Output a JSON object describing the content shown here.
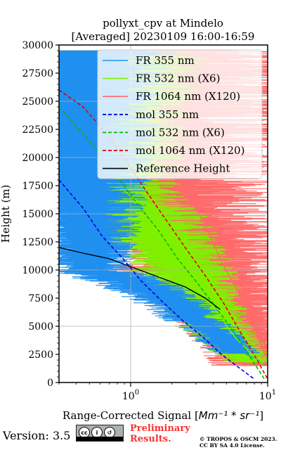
{
  "chart_data": {
    "type": "line",
    "title": [
      "pollyxt_cpv at Mindelo",
      "[Averaged] 20230109 16:00-16:59"
    ],
    "xlabel": "Range-Corrected Signal [Mm⁻¹ * sr⁻¹]",
    "xlabel_main": "Range-Corrected Signal [",
    "xlabel_math": "Mm⁻¹ * sr⁻¹",
    "xlabel_end": "]",
    "ylabel": "Height (m)",
    "xscale": "log",
    "xlim": [
      0.3,
      10
    ],
    "ylim": [
      0,
      30000
    ],
    "xticks": [
      {
        "value": 1,
        "base": "10",
        "exp": "0"
      },
      {
        "value": 10,
        "base": "10",
        "exp": "1"
      }
    ],
    "yticks": [
      0,
      2500,
      5000,
      7500,
      10000,
      12500,
      15000,
      17500,
      20000,
      22500,
      25000,
      27500,
      30000
    ],
    "ytick_labels": [
      "0",
      "2500",
      "5000",
      "7500",
      "10000",
      "12500",
      "15000",
      "17500",
      "20000",
      "22500",
      "25000",
      "27500",
      "30000"
    ],
    "grid": true,
    "legend_position": "top-right",
    "series": [
      {
        "name": "FR 355 nm",
        "color": "#1f8ff0",
        "style": "solid",
        "x": [
          0.6,
          1.2,
          1.8,
          2.3,
          2.8,
          3.5,
          4.6,
          5.8,
          7.0,
          8.5,
          9.5
        ],
        "y": [
          10000,
          9000,
          8000,
          7200,
          6500,
          5500,
          4500,
          3200,
          2500,
          2000,
          1500
        ]
      },
      {
        "name": "FR 532 nm (X6)",
        "color": "#80f000",
        "style": "solid",
        "x": [
          0.9,
          1.5,
          2.2,
          2.8,
          3.3,
          4.0,
          5.0,
          6.0,
          7.0,
          7.6,
          8.3,
          9.3
        ],
        "y": [
          17000,
          15000,
          12500,
          11000,
          9500,
          7500,
          5000,
          3800,
          3000,
          2500,
          2000,
          1600
        ]
      },
      {
        "name": "FR 1064 nm (X120)",
        "color": "#ff6a6a",
        "style": "solid",
        "x": [
          2.5,
          3.5,
          4.5,
          5.5,
          6.5,
          7.5,
          8.5,
          9.5
        ],
        "y": [
          17000,
          14000,
          11000,
          9000,
          7500,
          6000,
          4000,
          2500
        ]
      },
      {
        "name": "mol 355 nm",
        "color": "#0000dd",
        "style": "dashed",
        "x": [
          0.3,
          0.45,
          0.62,
          0.88,
          1.2,
          1.7,
          2.4,
          3.4,
          4.6,
          6.2,
          8.0
        ],
        "y": [
          18000,
          15500,
          13000,
          11000,
          9000,
          7200,
          5500,
          4000,
          2500,
          1300,
          300
        ]
      },
      {
        "name": "mol 532 nm (X6)",
        "color": "#00bb00",
        "style": "dashed",
        "x": [
          0.3,
          0.5,
          0.78,
          1.1,
          1.6,
          2.2,
          3.0,
          4.0,
          5.3,
          6.8,
          8.5,
          9.6
        ],
        "y": [
          24500,
          21500,
          18500,
          16000,
          13500,
          11000,
          9000,
          7000,
          5000,
          3000,
          1200,
          200
        ]
      },
      {
        "name": "mol 1064 nm (X120)",
        "color": "#dd0000",
        "style": "dashed",
        "x": [
          0.3,
          0.45,
          0.68,
          0.95,
          1.3,
          1.8,
          2.5,
          3.5,
          4.8,
          6.3,
          8.2,
          10.0
        ],
        "y": [
          26000,
          24500,
          22000,
          19500,
          17000,
          14500,
          12000,
          9500,
          7000,
          4500,
          2200,
          300
        ]
      },
      {
        "name": "Reference Height",
        "color": "#000000",
        "style": "solid",
        "x": [
          0.3,
          0.45,
          0.7,
          0.9,
          1.5,
          2.5,
          3.5,
          4.5
        ],
        "y": [
          12000,
          11500,
          11000,
          10500,
          9500,
          8500,
          7500,
          6500
        ]
      }
    ]
  },
  "footer": {
    "version": "Version: 3.5",
    "preliminary_line1": "Preliminary",
    "preliminary_line2": "Results.",
    "copyright_line1": "© TROPOS & OSCM 2023.",
    "copyright_line2": "CC BY SA 4.0 License.",
    "cc_icons": [
      "cc",
      "by",
      "sa"
    ]
  }
}
